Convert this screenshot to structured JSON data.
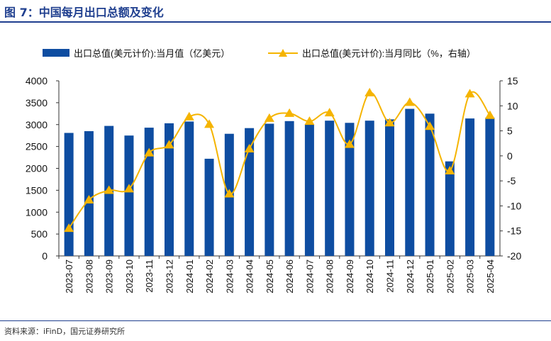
{
  "title": "图 7：中国每月出口总额及变化",
  "source": "资料来源：iFinD，国元证券研究所",
  "chart_data": {
    "type": "bar+line",
    "categories": [
      "2023-07",
      "2023-08",
      "2023-09",
      "2023-10",
      "2023-11",
      "2023-12",
      "2024-01",
      "2024-02",
      "2024-03",
      "2024-04",
      "2024-05",
      "2024-06",
      "2024-07",
      "2024-08",
      "2024-09",
      "2024-10",
      "2024-11",
      "2024-12",
      "2025-01",
      "2025-02",
      "2025-03",
      "2025-04"
    ],
    "series": [
      {
        "name": "出口总值(美元计价):当月值（亿美元）",
        "type": "bar",
        "axis": "left",
        "color": "#0e4da1",
        "values": [
          2810,
          2850,
          2970,
          2750,
          2930,
          3030,
          3070,
          2220,
          2790,
          2920,
          3020,
          3080,
          3000,
          3090,
          3040,
          3090,
          3120,
          3360,
          3250,
          2160,
          3140,
          3160
        ]
      },
      {
        "name": "出口总值(美元计价):当月同比（%，右轴）",
        "type": "line",
        "axis": "right",
        "color": "#f5b400",
        "values": [
          -14.5,
          -8.8,
          -6.9,
          -6.6,
          0.6,
          2.2,
          7.8,
          6.3,
          -7.6,
          1.4,
          7.5,
          8.5,
          6.9,
          8.6,
          2.3,
          12.6,
          6.6,
          10.7,
          5.9,
          -3.0,
          12.4,
          8.1
        ]
      }
    ],
    "left_axis": {
      "min": 0,
      "max": 4000,
      "ticks": [
        0,
        500,
        1000,
        1500,
        2000,
        2500,
        3000,
        3500,
        4000
      ]
    },
    "right_axis": {
      "min": -20,
      "max": 15,
      "ticks": [
        -20,
        -15,
        -10,
        -5,
        0,
        5,
        10,
        15
      ]
    },
    "legend": "top"
  }
}
